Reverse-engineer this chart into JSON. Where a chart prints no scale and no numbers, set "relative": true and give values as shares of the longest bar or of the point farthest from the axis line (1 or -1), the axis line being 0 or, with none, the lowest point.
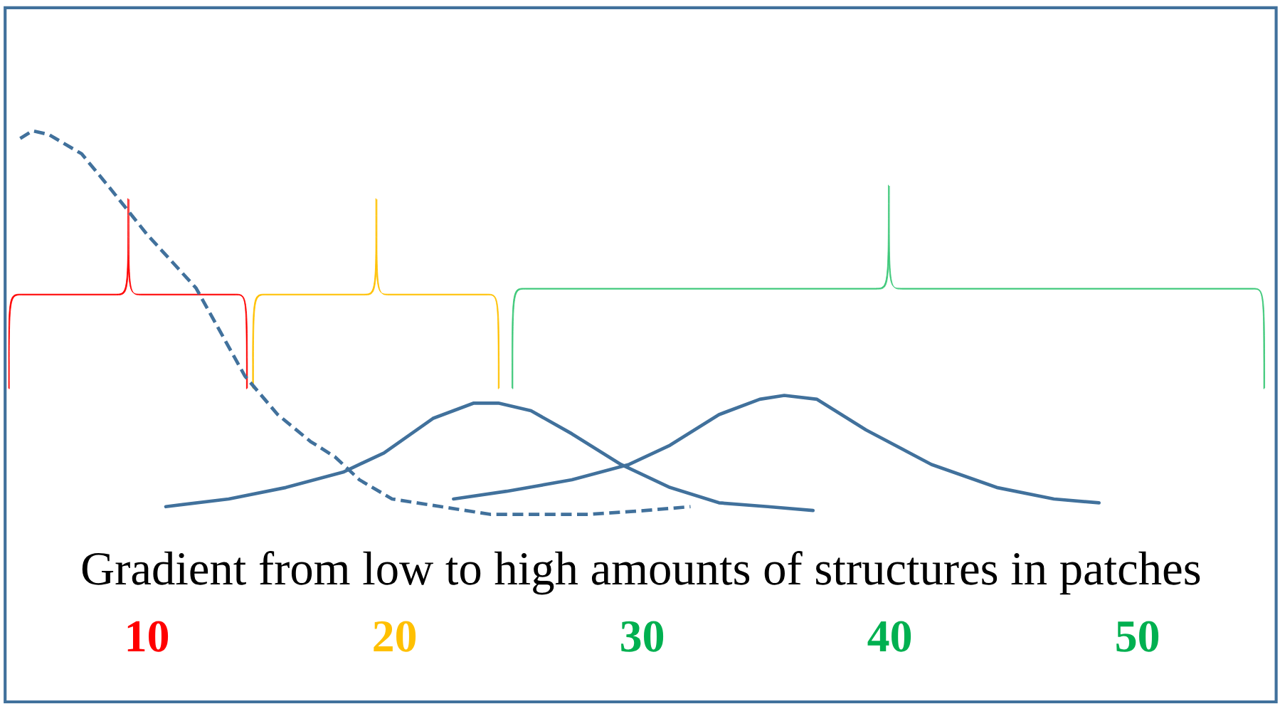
{
  "chart_data": {
    "type": "line",
    "relative": true,
    "xlabel": "Gradient from low to high amounts of structures in patches",
    "xlim": [
      4.4,
      55.5
    ],
    "xticks": [
      10,
      20,
      30,
      40,
      50
    ],
    "grid": false,
    "marker": "none",
    "series": [
      {
        "color": "#41719c",
        "line_style": "dashed",
        "x": [
          4.88,
          5.38,
          6.04,
          7.36,
          8.51,
          10.0,
          11.98,
          13.96,
          15.28,
          16.6,
          17.59,
          18.58,
          19.9,
          21.88,
          23.86,
          25.84,
          27.82,
          30.13,
          31.95
        ],
        "values": [
          0.98,
          1.0,
          0.99,
          0.94,
          0.85,
          0.73,
          0.59,
          0.36,
          0.26,
          0.19,
          0.15,
          0.09,
          0.04,
          0.02,
          0.0,
          0.0,
          0.0,
          0.01,
          0.02
        ]
      },
      {
        "color": "#41719c",
        "line_style": "solid",
        "x": [
          10.76,
          13.3,
          15.61,
          17.92,
          19.57,
          21.55,
          23.2,
          24.19,
          25.51,
          27.16,
          29.14,
          31.12,
          33.1,
          35.08,
          36.9
        ],
        "values": [
          0.02,
          0.04,
          0.07,
          0.11,
          0.16,
          0.25,
          0.29,
          0.29,
          0.27,
          0.21,
          0.13,
          0.07,
          0.03,
          0.02,
          0.01
        ]
      },
      {
        "color": "#41719c",
        "line_style": "solid",
        "x": [
          22.38,
          24.52,
          27.16,
          29.47,
          31.12,
          33.1,
          34.75,
          35.74,
          37.06,
          39.04,
          41.68,
          44.32,
          46.63,
          48.45
        ],
        "values": [
          0.04,
          0.06,
          0.09,
          0.13,
          0.18,
          0.26,
          0.3,
          0.31,
          0.3,
          0.22,
          0.13,
          0.07,
          0.04,
          0.03
        ]
      }
    ]
  }
}
